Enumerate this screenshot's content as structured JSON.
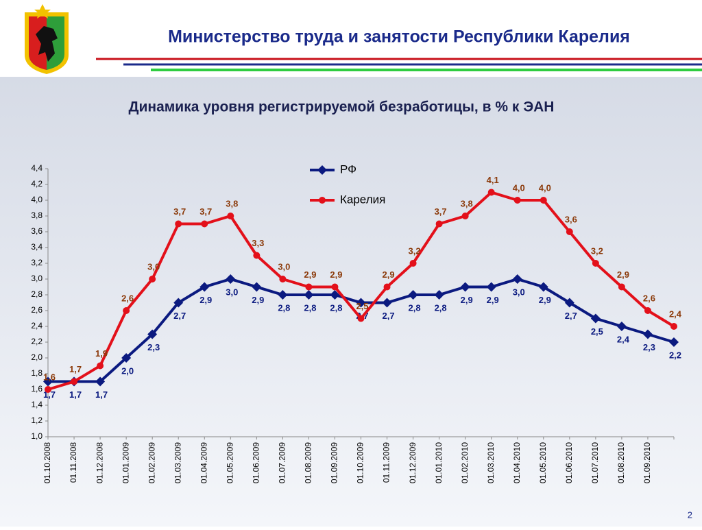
{
  "header": {
    "title": "Министерство труда и занятости Республики Карелия"
  },
  "page_number": "2",
  "chart_data": {
    "type": "line",
    "title": "Динамика уровня регистрируемой безработицы, в % к ЭАН",
    "categories": [
      "01.10.2008",
      "01.11.2008",
      "01.12.2008",
      "01.01.2009",
      "01.02.2009",
      "01.03.2009",
      "01.04.2009",
      "01.05.2009",
      "01.06.2009",
      "01.07.2009",
      "01.08.2009",
      "01.09.2009",
      "01.10.2009",
      "01.11.2009",
      "01.12.2009",
      "01.01.2010",
      "01.02.2010",
      "01.03.2010",
      "01.04.2010",
      "01.05.2010",
      "01.06.2010",
      "01.07.2010",
      "01.08.2010",
      "01.09.2010",
      null
    ],
    "series": [
      {
        "name": "РФ",
        "color": "#0b1a80",
        "label_color": "#0b1a80",
        "marker": "diamond",
        "values": [
          1.7,
          1.7,
          1.7,
          2.0,
          2.3,
          2.7,
          2.9,
          3.0,
          2.9,
          2.8,
          2.8,
          2.8,
          2.7,
          2.7,
          2.8,
          2.8,
          2.9,
          2.9,
          3.0,
          2.9,
          2.7,
          2.5,
          2.4,
          2.3,
          2.2
        ],
        "value_labels": [
          "1,7",
          "1,7",
          "1,7",
          "2,0",
          "2,3",
          "2,7",
          "2,9",
          "3,0",
          "2,9",
          "2,8",
          "2,8",
          "2,8",
          "2,7",
          "2,7",
          "2,8",
          "2,8",
          "2,9",
          "2,9",
          "3,0",
          "2,9",
          "2,7",
          "2,5",
          "2,4",
          "2,3",
          "2,2"
        ]
      },
      {
        "name": "Карелия",
        "color": "#e3101a",
        "label_color": "#8b3a0a",
        "marker": "circle",
        "values": [
          1.6,
          1.7,
          1.9,
          2.6,
          3.0,
          3.7,
          3.7,
          3.8,
          3.3,
          3.0,
          2.9,
          2.9,
          2.5,
          2.9,
          3.2,
          3.7,
          3.8,
          4.1,
          4.0,
          4.0,
          3.6,
          3.2,
          2.9,
          2.6,
          2.4
        ],
        "value_labels": [
          "1,6",
          "1,7",
          "1,9",
          "2,6",
          "3,0",
          "3,7",
          "3,7",
          "3,8",
          "3,3",
          "3,0",
          "2,9",
          "2,9",
          "2,5",
          "2,9",
          "3,2",
          "3,7",
          "3,8",
          "4,1",
          "4,0",
          "4,0",
          "3,6",
          "3,2",
          "2,9",
          "2,6",
          "2,4"
        ]
      }
    ],
    "ylim": [
      1.0,
      4.4
    ],
    "yticks": [
      {
        "value": 1.0,
        "label": "1,0"
      },
      {
        "value": 1.2,
        "label": "1,2"
      },
      {
        "value": 1.4,
        "label": "1,4"
      },
      {
        "value": 1.6,
        "label": "1,6"
      },
      {
        "value": 1.8,
        "label": "1,8"
      },
      {
        "value": 2.0,
        "label": "2,0"
      },
      {
        "value": 2.2,
        "label": "2,2"
      },
      {
        "value": 2.4,
        "label": "2,4"
      },
      {
        "value": 2.6,
        "label": "2,6"
      },
      {
        "value": 2.8,
        "label": "2,8"
      },
      {
        "value": 3.0,
        "label": "3,0"
      },
      {
        "value": 3.2,
        "label": "3,2"
      },
      {
        "value": 3.4,
        "label": "3,4"
      },
      {
        "value": 3.6,
        "label": "3,6"
      },
      {
        "value": 3.8,
        "label": "3,8"
      },
      {
        "value": 4.0,
        "label": "4,0"
      },
      {
        "value": 4.2,
        "label": "4,2"
      },
      {
        "value": 4.4,
        "label": "4,4"
      }
    ],
    "grid": false,
    "legend": "top"
  }
}
